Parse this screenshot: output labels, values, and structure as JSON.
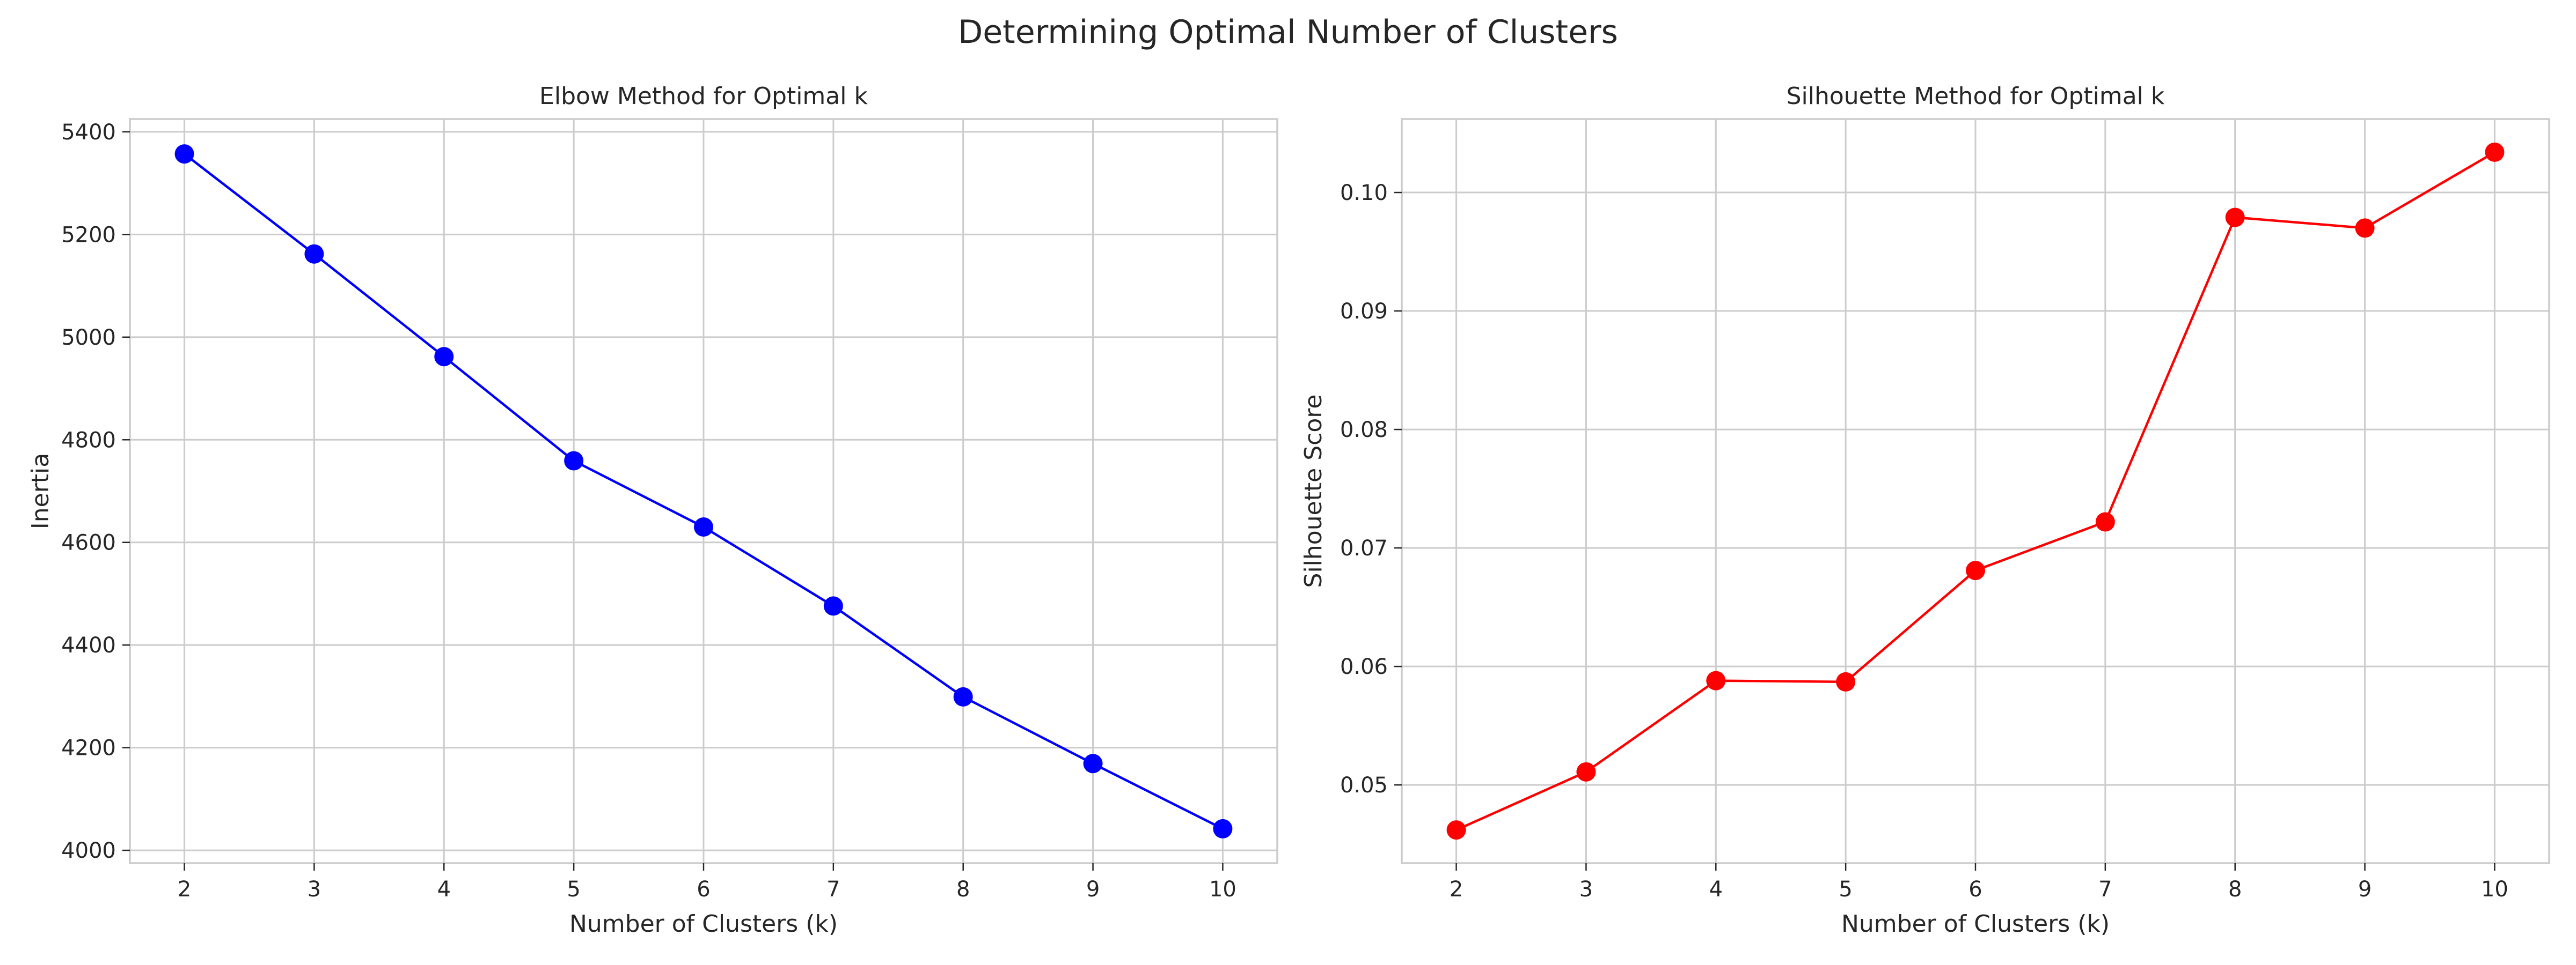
{
  "figure": {
    "suptitle": "Determining Optimal Number of Clusters"
  },
  "chart_data": [
    {
      "type": "line",
      "title": "Elbow Method for Optimal k",
      "xlabel": "Number of Clusters (k)",
      "ylabel": "Inertia",
      "x": [
        2,
        3,
        4,
        5,
        6,
        7,
        8,
        9,
        10
      ],
      "series": [
        {
          "values": [
            5357,
            5162,
            4962,
            4759,
            4630,
            4476,
            4299,
            4169,
            4042
          ],
          "color": "#0000ff",
          "marker": "circle"
        }
      ],
      "xlim": [
        1.58,
        10.42
      ],
      "ylim": [
        3975,
        5425
      ],
      "xticks": [
        2,
        3,
        4,
        5,
        6,
        7,
        8,
        9,
        10
      ],
      "yticks": [
        4000,
        4200,
        4400,
        4600,
        4800,
        5000,
        5200,
        5400
      ],
      "ytick_labels": [
        "4000",
        "4200",
        "4400",
        "4600",
        "4800",
        "5000",
        "5200",
        "5400"
      ],
      "grid": true
    },
    {
      "type": "line",
      "title": "Silhouette Method for Optimal k",
      "xlabel": "Number of Clusters (k)",
      "ylabel": "Silhouette Score",
      "x": [
        2,
        3,
        4,
        5,
        6,
        7,
        8,
        9,
        10
      ],
      "series": [
        {
          "values": [
            0.0462,
            0.0511,
            0.0588,
            0.0587,
            0.0681,
            0.0722,
            0.0979,
            0.097,
            0.1034
          ],
          "color": "#ff0000",
          "marker": "circle"
        }
      ],
      "xlim": [
        1.58,
        10.42
      ],
      "ylim": [
        0.0434,
        0.1062
      ],
      "xticks": [
        2,
        3,
        4,
        5,
        6,
        7,
        8,
        9,
        10
      ],
      "yticks": [
        0.05,
        0.06,
        0.07,
        0.08,
        0.09,
        0.1
      ],
      "ytick_labels": [
        "0.05",
        "0.06",
        "0.07",
        "0.08",
        "0.09",
        "0.10"
      ],
      "grid": true
    }
  ]
}
